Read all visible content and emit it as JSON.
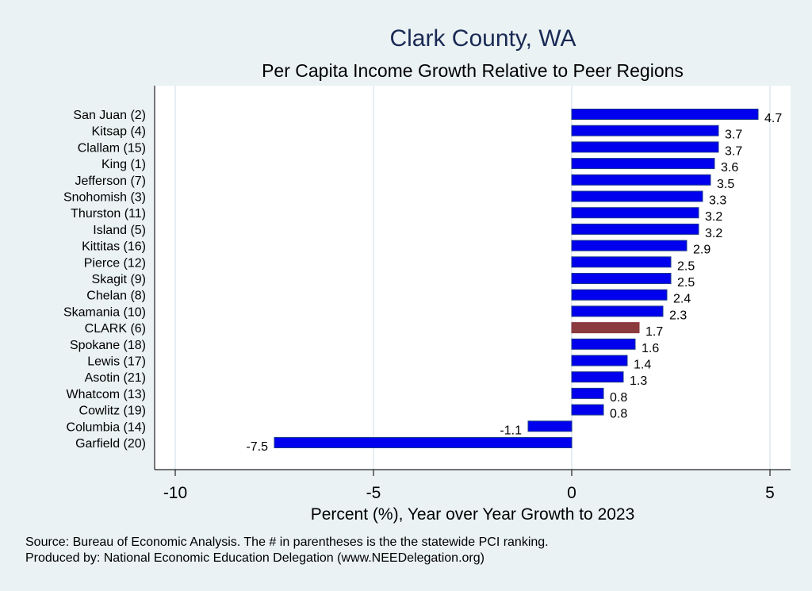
{
  "chart_data": {
    "type": "bar",
    "orientation": "horizontal",
    "title": "Clark County, WA",
    "subtitle": "Per Capita Income Growth Relative to Peer Regions",
    "xlabel": "Percent (%), Year over Year Growth to 2023",
    "ylabel": "",
    "xlim": [
      -10.5,
      5.5
    ],
    "xticks": [
      -10,
      -5,
      0,
      5
    ],
    "xtick_labels": [
      "-10",
      "-5",
      "0",
      "5"
    ],
    "grid": true,
    "categories": [
      "San Juan  (2)",
      "Kitsap  (4)",
      "Clallam (15)",
      "King  (1)",
      "Jefferson  (7)",
      "Snohomish  (3)",
      "Thurston (11)",
      "Island  (5)",
      "Kittitas (16)",
      "Pierce (12)",
      "Skagit  (9)",
      "Chelan  (8)",
      "Skamania (10)",
      "CLARK  (6)",
      "Spokane (18)",
      "Lewis (17)",
      "Asotin (21)",
      "Whatcom (13)",
      "Cowlitz (19)",
      "Columbia (14)",
      "Garfield (20)"
    ],
    "values": [
      4.7,
      3.7,
      3.7,
      3.6,
      3.5,
      3.3,
      3.2,
      3.2,
      2.9,
      2.5,
      2.5,
      2.4,
      2.3,
      1.7,
      1.6,
      1.4,
      1.3,
      0.8,
      0.8,
      -1.1,
      -7.5
    ],
    "value_labels": [
      "4.7",
      "3.7",
      "3.7",
      "3.6",
      "3.5",
      "3.3",
      "3.2",
      "3.2",
      "2.9",
      "2.5",
      "2.5",
      "2.4",
      "2.3",
      "1.7",
      "1.6",
      "1.4",
      "1.3",
      "0.8",
      "0.8",
      "-1.1",
      "-7.5"
    ],
    "highlight_index": 13,
    "colors": {
      "bar": "#0000ee",
      "bar_border": "#1a3a8a",
      "highlight": "#8b3a3e",
      "title": "#1a2a55",
      "background": "#eaf2f3",
      "plot_background": "#ffffff",
      "grid": "#e6eef2"
    }
  },
  "notes": {
    "source": "Source: Bureau of Economic Analysis. The # in parentheses is the the statewide PCI ranking.",
    "produced_by": "Produced by: National Economic Education Delegation (www.NEEDelegation.org)"
  }
}
